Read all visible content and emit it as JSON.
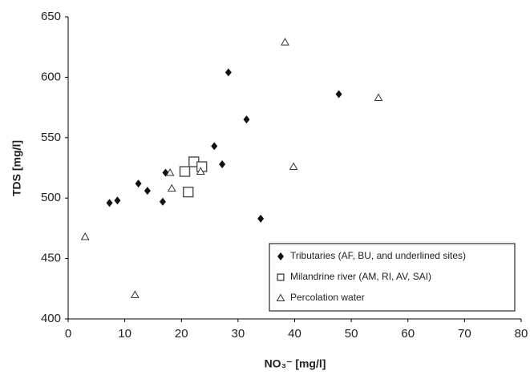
{
  "chart_data": {
    "type": "scatter",
    "x_label": "NO₃⁻ [mg/l]",
    "y_label": "TDS [mg/l]",
    "xlim": [
      0,
      80
    ],
    "xticks": [
      0,
      10,
      20,
      30,
      40,
      50,
      60,
      70,
      80
    ],
    "ylim": [
      400,
      650
    ],
    "yticks": [
      400,
      450,
      500,
      550,
      600,
      650
    ],
    "grid": false,
    "legend_position": "lower right",
    "series": [
      {
        "name": "Tributaries (AF, BU, and underlined sites)",
        "marker": "diamond",
        "color": "#111111",
        "x": [
          7.3,
          8.7,
          12.4,
          14,
          16.7,
          17.2,
          25.8,
          27.2,
          28.3,
          31.5,
          34,
          47.8
        ],
        "values": [
          496,
          498,
          512,
          506,
          497,
          521,
          543,
          528,
          604,
          565,
          483,
          586
        ]
      },
      {
        "name": "Milandrine river (AM, RI, AV, SAI)",
        "marker": "square",
        "color": "#555555",
        "x": [
          20.6,
          21.2,
          22.2,
          23.6
        ],
        "values": [
          522,
          505,
          530,
          526
        ]
      },
      {
        "name": "Percolation water",
        "marker": "triangle",
        "color": "#333333",
        "x": [
          3,
          11.8,
          18,
          18.3,
          23.4,
          38.3,
          39.8,
          54.8
        ],
        "values": [
          468,
          420,
          521,
          508,
          522,
          629,
          526,
          583
        ]
      }
    ]
  }
}
